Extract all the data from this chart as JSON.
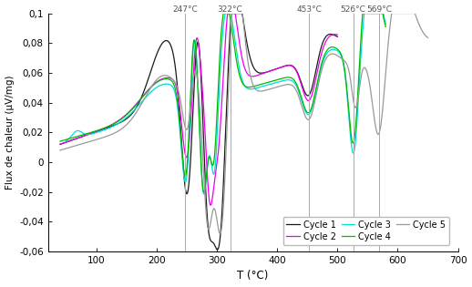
{
  "title": "",
  "xlabel": "T (°C)",
  "ylabel": "Flux de chaleur (µV/mg)",
  "xlim": [
    20,
    700
  ],
  "ylim": [
    -0.06,
    0.1
  ],
  "yticks": [
    -0.06,
    -0.04,
    -0.02,
    0,
    0.02,
    0.04,
    0.06,
    0.08,
    0.1
  ],
  "xticks": [
    100,
    200,
    300,
    400,
    500,
    600,
    700
  ],
  "vlines": [
    247,
    322,
    453,
    526,
    569
  ],
  "vline_labels": [
    "247°C",
    "322°C",
    "453°C",
    "526°C",
    "569°C"
  ],
  "colors": {
    "cycle1": "#1a1a1a",
    "cycle2": "#ee00ee",
    "cycle3": "#00dddd",
    "cycle4": "#00bb00",
    "cycle5": "#999999"
  },
  "legend_labels": [
    "Cycle 1",
    "Cycle 2",
    "Cycle 3",
    "Cycle 4",
    "Cycle 5"
  ],
  "legend_order": [
    "Cycle 1",
    "Cycle 2",
    "Cycle 3",
    "Cycle 4",
    "Cycle 5"
  ]
}
